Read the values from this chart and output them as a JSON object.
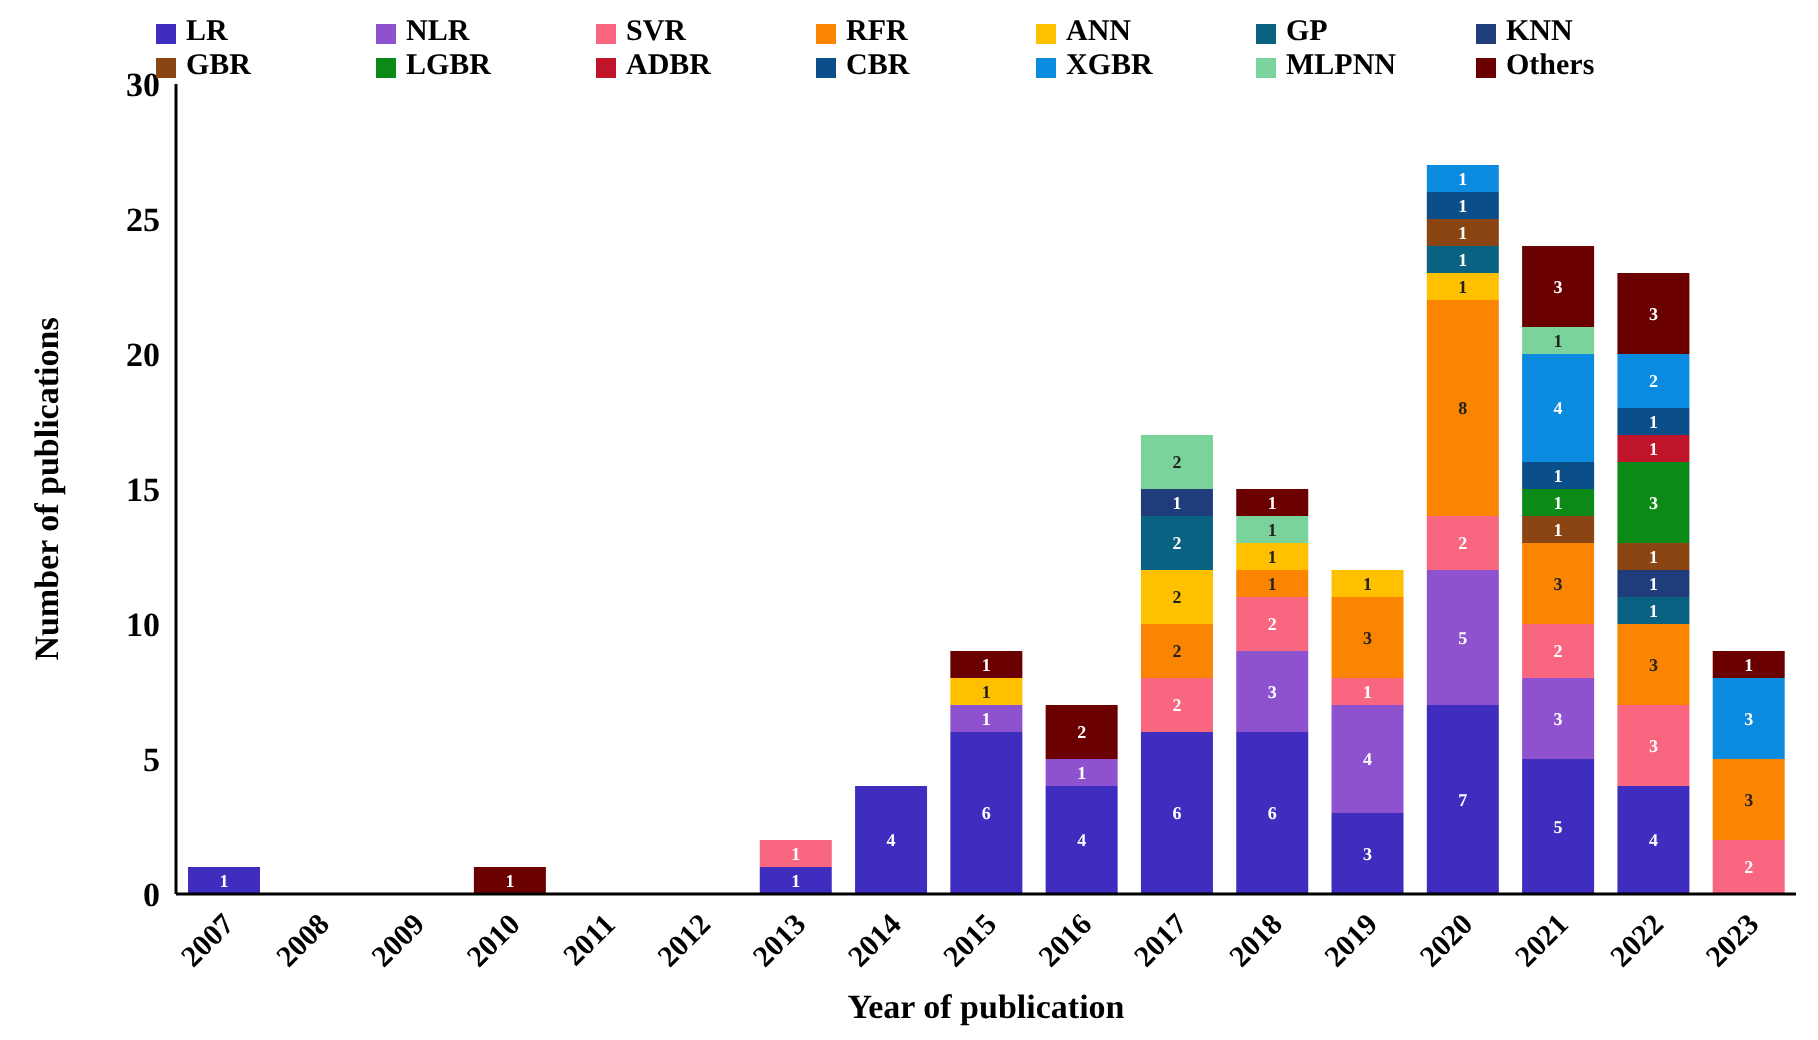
{
  "chart_data": {
    "type": "bar",
    "stacked": true,
    "xlabel": "Year of publication",
    "ylabel": "Number of publications",
    "categories": [
      "2007",
      "2008",
      "2009",
      "2010",
      "2011",
      "2012",
      "2013",
      "2014",
      "2015",
      "2016",
      "2017",
      "2018",
      "2019",
      "2020",
      "2021",
      "2022",
      "2023"
    ],
    "ylim": [
      0,
      30
    ],
    "yticks": [
      0,
      5,
      10,
      15,
      20,
      25,
      30
    ],
    "grid": false,
    "legend": "top",
    "data_labels": true,
    "series": [
      {
        "name": "LR",
        "color": "#3f2dbf",
        "values": [
          1,
          null,
          null,
          null,
          null,
          null,
          1,
          4,
          6,
          4,
          6,
          6,
          3,
          7,
          5,
          4,
          null
        ]
      },
      {
        "name": "NLR",
        "color": "#8f52cf",
        "values": [
          null,
          null,
          null,
          null,
          null,
          null,
          null,
          null,
          1,
          1,
          null,
          3,
          4,
          5,
          3,
          null,
          null
        ]
      },
      {
        "name": "SVR",
        "color": "#f8667f",
        "values": [
          null,
          null,
          null,
          null,
          null,
          null,
          1,
          null,
          null,
          null,
          2,
          2,
          1,
          2,
          2,
          3,
          2
        ]
      },
      {
        "name": "RFR",
        "color": "#fb8500",
        "values": [
          null,
          null,
          null,
          null,
          null,
          null,
          null,
          null,
          null,
          null,
          2,
          1,
          3,
          8,
          3,
          3,
          3
        ]
      },
      {
        "name": "ANN",
        "color": "#ffc000",
        "values": [
          null,
          null,
          null,
          null,
          null,
          null,
          null,
          null,
          1,
          null,
          2,
          1,
          1,
          1,
          null,
          null,
          null
        ]
      },
      {
        "name": "GP",
        "color": "#0a6283",
        "values": [
          null,
          null,
          null,
          null,
          null,
          null,
          null,
          null,
          null,
          null,
          2,
          null,
          null,
          1,
          null,
          1,
          null
        ]
      },
      {
        "name": "KNN",
        "color": "#1f3d7a",
        "values": [
          null,
          null,
          null,
          null,
          null,
          null,
          null,
          null,
          null,
          null,
          1,
          null,
          null,
          null,
          null,
          1,
          null
        ]
      },
      {
        "name": "GBR",
        "color": "#8b4513",
        "values": [
          null,
          null,
          null,
          null,
          null,
          null,
          null,
          null,
          null,
          null,
          null,
          null,
          null,
          1,
          1,
          1,
          null
        ]
      },
      {
        "name": "LGBR",
        "color": "#0b8a17",
        "values": [
          null,
          null,
          null,
          null,
          null,
          null,
          null,
          null,
          null,
          null,
          null,
          null,
          null,
          null,
          1,
          3,
          null
        ]
      },
      {
        "name": "ADBR",
        "color": "#c0142a",
        "values": [
          null,
          null,
          null,
          null,
          null,
          null,
          null,
          null,
          null,
          null,
          null,
          null,
          null,
          null,
          null,
          1,
          null
        ]
      },
      {
        "name": "CBR",
        "color": "#0b4f8a",
        "values": [
          null,
          null,
          null,
          null,
          null,
          null,
          null,
          null,
          null,
          null,
          null,
          null,
          null,
          1,
          1,
          1,
          null
        ]
      },
      {
        "name": "XGBR",
        "color": "#0a8be0",
        "values": [
          null,
          null,
          null,
          null,
          null,
          null,
          null,
          null,
          null,
          null,
          null,
          null,
          null,
          1,
          4,
          2,
          3
        ]
      },
      {
        "name": "MLPNN",
        "color": "#7ad39a",
        "values": [
          null,
          null,
          null,
          null,
          null,
          null,
          null,
          null,
          null,
          null,
          2,
          1,
          null,
          null,
          1,
          null,
          null
        ]
      },
      {
        "name": "Others",
        "color": "#6b0000",
        "values": [
          null,
          null,
          null,
          1,
          null,
          null,
          null,
          null,
          1,
          2,
          null,
          1,
          null,
          null,
          3,
          3,
          1
        ]
      }
    ]
  }
}
